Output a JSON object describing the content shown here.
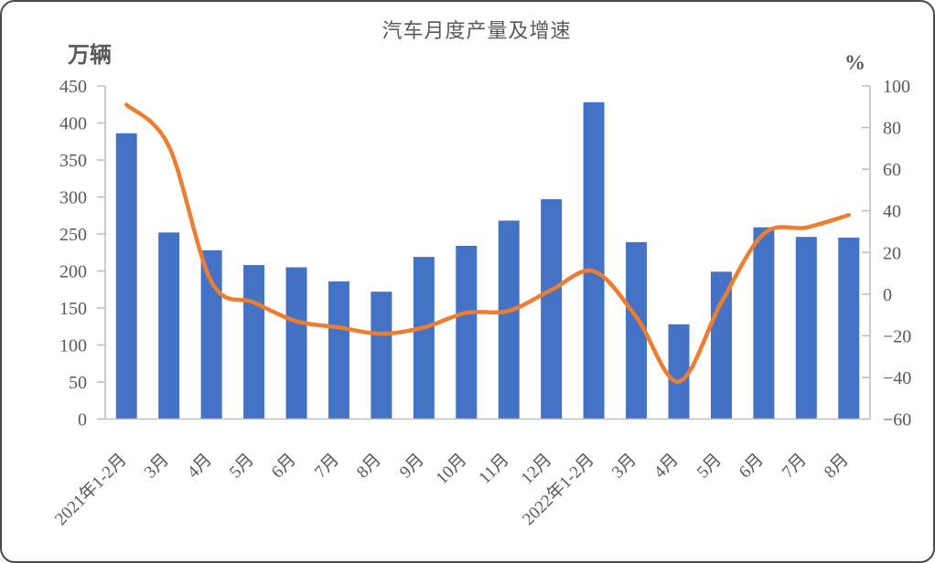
{
  "ui": {
    "title": "汽车月度产量及增速",
    "left_axis_unit": "万辆",
    "right_axis_unit": "%"
  },
  "chart_data": {
    "type": "bar",
    "subtype": "combo-bar-line-dual-axis",
    "title": "汽车月度产量及增速",
    "categories": [
      "2021年1-2月",
      "3月",
      "4月",
      "5月",
      "6月",
      "7月",
      "8月",
      "9月",
      "10月",
      "11月",
      "12月",
      "2022年1-2月",
      "3月",
      "4月",
      "5月",
      "6月",
      "7月",
      "8月"
    ],
    "series": [
      {
        "name": "产量",
        "type": "bar",
        "axis": "left",
        "unit": "万辆",
        "color": "#4472C4",
        "values": [
          386,
          252,
          228,
          208,
          205,
          186,
          172,
          219,
          234,
          268,
          297,
          428,
          239,
          128,
          199,
          259,
          246,
          245
        ]
      },
      {
        "name": "增速",
        "type": "line",
        "axis": "right",
        "unit": "%",
        "color": "#ED7D31",
        "smooth": true,
        "values": [
          91,
          71,
          6,
          -4,
          -13,
          -16,
          -19,
          -16,
          -9,
          -8,
          2,
          11,
          -11,
          -42,
          -4,
          29,
          32,
          38
        ]
      }
    ],
    "left_axis": {
      "label": "万辆",
      "min": 0,
      "max": 450,
      "tick_step": 50,
      "tick_labels": [
        "450",
        "400",
        "350",
        "300",
        "250",
        "200",
        "150",
        "100",
        "50",
        "0"
      ]
    },
    "right_axis": {
      "label": "%",
      "min": -60,
      "max": 100,
      "tick_step": 20,
      "tick_labels": [
        "100",
        "80",
        "60",
        "40",
        "20",
        "0",
        "−20",
        "−40",
        "−60"
      ]
    },
    "legend": "none",
    "grid": "off",
    "colors": {
      "text": "#595959",
      "axis": "#BFBFBF",
      "bar": "#4472C4",
      "line": "#ED7D31"
    }
  }
}
